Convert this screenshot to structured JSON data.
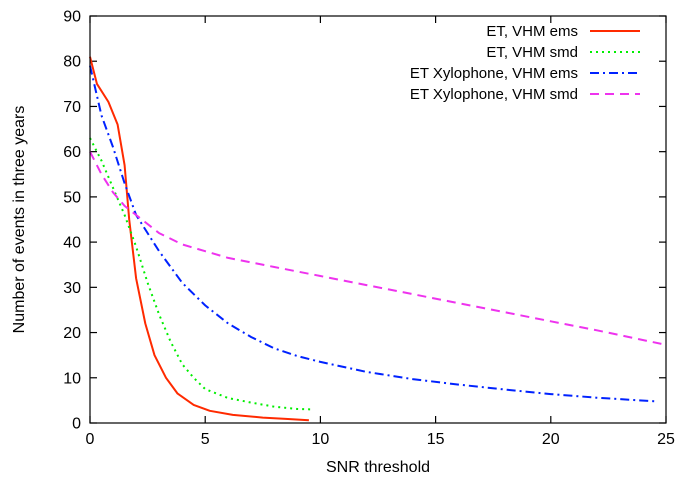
{
  "chart_data": {
    "type": "line",
    "title": "",
    "xlabel": "SNR threshold",
    "ylabel": "Number of events in three years",
    "xlim": [
      0,
      25
    ],
    "ylim": [
      0,
      90
    ],
    "xticks": [
      0,
      5,
      10,
      15,
      20,
      25
    ],
    "yticks": [
      0,
      10,
      20,
      30,
      40,
      50,
      60,
      70,
      80,
      90
    ],
    "grid": false,
    "legend_position": "top-right",
    "series": [
      {
        "name": "ET, VHM ems",
        "color": "#ff2a00",
        "dash": "solid",
        "points": [
          [
            0,
            81
          ],
          [
            0.3,
            75
          ],
          [
            0.8,
            71
          ],
          [
            1.2,
            66
          ],
          [
            1.5,
            57
          ],
          [
            1.7,
            45
          ],
          [
            2.0,
            32
          ],
          [
            2.4,
            22
          ],
          [
            2.8,
            15
          ],
          [
            3.3,
            10
          ],
          [
            3.8,
            6.5
          ],
          [
            4.5,
            4
          ],
          [
            5.2,
            2.7
          ],
          [
            6.2,
            1.8
          ],
          [
            7.5,
            1.2
          ],
          [
            8.5,
            0.9
          ],
          [
            9.5,
            0.6
          ]
        ]
      },
      {
        "name": "ET, VHM smd",
        "color": "#00ee00",
        "dash": "dot",
        "points": [
          [
            0,
            63
          ],
          [
            0.5,
            58
          ],
          [
            1.0,
            52
          ],
          [
            1.5,
            46
          ],
          [
            2.0,
            39
          ],
          [
            2.5,
            31
          ],
          [
            3.0,
            24
          ],
          [
            3.5,
            18
          ],
          [
            4.0,
            13
          ],
          [
            4.5,
            10
          ],
          [
            5.0,
            7.5
          ],
          [
            6.0,
            5.5
          ],
          [
            7.0,
            4.5
          ],
          [
            8.0,
            3.6
          ],
          [
            9.0,
            3.1
          ],
          [
            9.7,
            3.0
          ]
        ]
      },
      {
        "name": "ET Xylophone, VHM ems",
        "color": "#0022ff",
        "dash": "dashdot",
        "points": [
          [
            0,
            79
          ],
          [
            0.5,
            68
          ],
          [
            1.0,
            61
          ],
          [
            1.5,
            53
          ],
          [
            2.0,
            46
          ],
          [
            3.0,
            38
          ],
          [
            4.0,
            31
          ],
          [
            5.0,
            26
          ],
          [
            6.0,
            22
          ],
          [
            7.0,
            19
          ],
          [
            8.0,
            16.5
          ],
          [
            9.0,
            14.8
          ],
          [
            10.0,
            13.5
          ],
          [
            12.0,
            11.3
          ],
          [
            14.0,
            9.7
          ],
          [
            16.0,
            8.5
          ],
          [
            18.0,
            7.4
          ],
          [
            20.0,
            6.4
          ],
          [
            22.0,
            5.6
          ],
          [
            24.5,
            4.8
          ]
        ]
      },
      {
        "name": "ET Xylophone, VHM smd",
        "color": "#ee33ee",
        "dash": "dash",
        "points": [
          [
            0,
            60
          ],
          [
            0.5,
            55
          ],
          [
            1.0,
            51
          ],
          [
            1.5,
            48
          ],
          [
            2.0,
            46
          ],
          [
            3.0,
            42
          ],
          [
            4.0,
            39.5
          ],
          [
            5.0,
            38
          ],
          [
            6.0,
            36.5
          ],
          [
            8.0,
            34.5
          ],
          [
            10.0,
            32.5
          ],
          [
            12.0,
            30.5
          ],
          [
            14.0,
            28.5
          ],
          [
            16.0,
            26.5
          ],
          [
            18.0,
            24.5
          ],
          [
            20.0,
            22.5
          ],
          [
            22.0,
            20.5
          ],
          [
            24.8,
            17.5
          ]
        ]
      }
    ]
  }
}
